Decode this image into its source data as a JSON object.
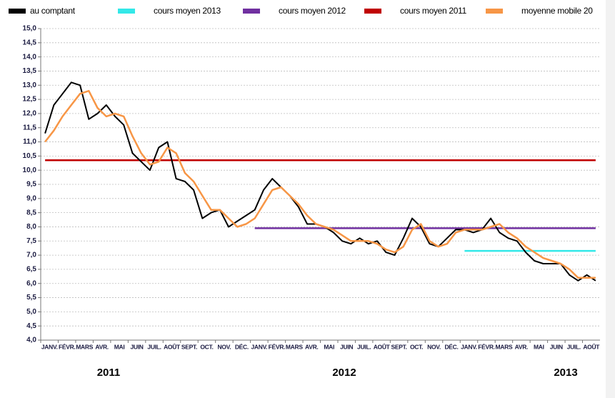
{
  "chart_data": {
    "type": "line",
    "categories": [
      "JANV.",
      null,
      "FÉVR.",
      null,
      "MARS",
      null,
      "AVR.",
      null,
      "MAI",
      null,
      "JUIN",
      null,
      "JUIL.",
      null,
      "AOÛT",
      null,
      "SEPT.",
      null,
      "OCT.",
      null,
      "NOV.",
      null,
      "DÉC.",
      null,
      "JANV.",
      null,
      "FÉVR.",
      null,
      "MARS",
      null,
      "AVR.",
      null,
      "MAI",
      null,
      "JUIN",
      null,
      "JUIL.",
      null,
      "AOÛT",
      null,
      "SEPT.",
      null,
      "OCT.",
      null,
      "NOV.",
      null,
      "DÉC.",
      null,
      "JANV.",
      null,
      "FÉVR.",
      null,
      "MARS",
      null,
      "AVR.",
      null,
      "MAI",
      null,
      "JUIN",
      null,
      "JUIL.",
      null,
      "AOÛT",
      null
    ],
    "series": [
      {
        "name": "au comptant",
        "color": "#000000",
        "values": [
          11.3,
          12.3,
          12.7,
          13.1,
          13.0,
          11.8,
          12.0,
          12.3,
          11.9,
          11.6,
          10.6,
          10.3,
          10.0,
          10.8,
          11.0,
          9.7,
          9.6,
          9.3,
          8.3,
          8.5,
          8.6,
          8.0,
          8.2,
          8.4,
          8.6,
          9.3,
          9.7,
          9.4,
          9.1,
          8.7,
          8.1,
          8.1,
          8.0,
          7.8,
          7.5,
          7.4,
          7.6,
          7.4,
          7.5,
          7.1,
          7.0,
          7.6,
          8.3,
          8.0,
          7.4,
          7.3,
          7.6,
          7.9,
          7.9,
          7.8,
          7.9,
          8.3,
          7.8,
          7.6,
          7.5,
          7.1,
          6.8,
          6.7,
          6.7,
          6.7,
          6.3,
          6.1,
          6.3,
          6.1
        ]
      },
      {
        "name": "cours moyen 2013",
        "color": "#33e8e8",
        "values": [
          null,
          null,
          null,
          null,
          null,
          null,
          null,
          null,
          null,
          null,
          null,
          null,
          null,
          null,
          null,
          null,
          null,
          null,
          null,
          null,
          null,
          null,
          null,
          null,
          null,
          null,
          null,
          null,
          null,
          null,
          null,
          null,
          null,
          null,
          null,
          null,
          null,
          null,
          null,
          null,
          null,
          null,
          null,
          null,
          null,
          null,
          null,
          null,
          7.15,
          7.15,
          7.15,
          7.15,
          7.15,
          7.15,
          7.15,
          7.15,
          7.15,
          7.15,
          7.15,
          7.15,
          7.15,
          7.15,
          7.15,
          7.15
        ]
      },
      {
        "name": "cours moyen 2012",
        "color": "#7030a0",
        "values": [
          null,
          null,
          null,
          null,
          null,
          null,
          null,
          null,
          null,
          null,
          null,
          null,
          null,
          null,
          null,
          null,
          null,
          null,
          null,
          null,
          null,
          null,
          null,
          null,
          7.95,
          7.95,
          7.95,
          7.95,
          7.95,
          7.95,
          7.95,
          7.95,
          7.95,
          7.95,
          7.95,
          7.95,
          7.95,
          7.95,
          7.95,
          7.95,
          7.95,
          7.95,
          7.95,
          7.95,
          7.95,
          7.95,
          7.95,
          7.95,
          7.95,
          7.95,
          7.95,
          7.95,
          7.95,
          7.95,
          7.95,
          7.95,
          7.95,
          7.95,
          7.95,
          7.95,
          7.95,
          7.95,
          7.95,
          7.95
        ]
      },
      {
        "name": "cours moyen 2011",
        "color": "#c00000",
        "values": [
          10.35,
          10.35,
          10.35,
          10.35,
          10.35,
          10.35,
          10.35,
          10.35,
          10.35,
          10.35,
          10.35,
          10.35,
          10.35,
          10.35,
          10.35,
          10.35,
          10.35,
          10.35,
          10.35,
          10.35,
          10.35,
          10.35,
          10.35,
          10.35,
          10.35,
          10.35,
          10.35,
          10.35,
          10.35,
          10.35,
          10.35,
          10.35,
          10.35,
          10.35,
          10.35,
          10.35,
          10.35,
          10.35,
          10.35,
          10.35,
          10.35,
          10.35,
          10.35,
          10.35,
          10.35,
          10.35,
          10.35,
          10.35,
          10.35,
          10.35,
          10.35,
          10.35,
          10.35,
          10.35,
          10.35,
          10.35,
          10.35,
          10.35,
          10.35,
          10.35,
          10.35,
          10.35,
          10.35,
          10.35
        ]
      },
      {
        "name": "moyenne mobile 20",
        "color": "#f79646",
        "values": [
          11.0,
          11.4,
          11.9,
          12.3,
          12.7,
          12.8,
          12.2,
          11.9,
          12.0,
          11.9,
          11.2,
          10.6,
          10.2,
          10.3,
          10.8,
          10.6,
          9.9,
          9.6,
          9.1,
          8.6,
          8.6,
          8.3,
          8.0,
          8.1,
          8.3,
          8.8,
          9.3,
          9.4,
          9.1,
          8.8,
          8.4,
          8.1,
          8.0,
          7.9,
          7.7,
          7.5,
          7.5,
          7.5,
          7.4,
          7.2,
          7.1,
          7.3,
          7.9,
          8.1,
          7.5,
          7.3,
          7.4,
          7.8,
          7.9,
          7.9,
          7.9,
          8.0,
          8.1,
          7.8,
          7.6,
          7.3,
          7.1,
          6.9,
          6.8,
          6.7,
          6.5,
          6.2,
          6.2,
          6.2
        ]
      }
    ],
    "ylim": [
      4,
      15
    ],
    "yticks": [
      {
        "value": 4,
        "label": "4,0"
      },
      {
        "value": 4.5,
        "label": "4,5"
      },
      {
        "value": 5,
        "label": "5,0"
      },
      {
        "value": 5.5,
        "label": "5,5"
      },
      {
        "value": 6,
        "label": "6,0"
      },
      {
        "value": 6.5,
        "label": "6,5"
      },
      {
        "value": 7,
        "label": "7,0"
      },
      {
        "value": 7.5,
        "label": "7,5"
      },
      {
        "value": 8,
        "label": "8,0"
      },
      {
        "value": 8.5,
        "label": "8,5"
      },
      {
        "value": 9,
        "label": "9,0"
      },
      {
        "value": 9.5,
        "label": "9,5"
      },
      {
        "value": 10,
        "label": "10,0"
      },
      {
        "value": 10.5,
        "label": "10,5"
      },
      {
        "value": 11,
        "label": "11,0"
      },
      {
        "value": 11.5,
        "label": "11,5"
      },
      {
        "value": 12,
        "label": "12,0"
      },
      {
        "value": 12.5,
        "label": "12,5"
      },
      {
        "value": 13,
        "label": "13,0"
      },
      {
        "value": 13.5,
        "label": "13,5"
      },
      {
        "value": 14,
        "label": "14,0"
      },
      {
        "value": 14.5,
        "label": "14,5"
      },
      {
        "value": 15,
        "label": "15,0"
      }
    ],
    "grid": true,
    "legend": "top",
    "year_labels": [
      "2011",
      "2012",
      "2013"
    ]
  }
}
